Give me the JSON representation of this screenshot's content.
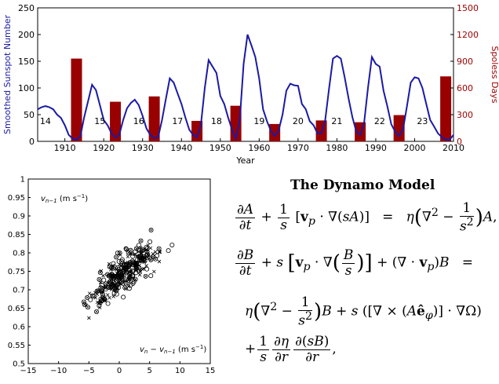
{
  "chart_data": [
    {
      "type": "line+bar",
      "title": "",
      "xlabel": "Year",
      "ylabel_left": "Smoothed Sunspot Number",
      "ylabel_right": "Spoless Days",
      "xlim": [
        1903,
        2010
      ],
      "ylim_left": [
        0,
        250
      ],
      "ylim_right": [
        0,
        1500
      ],
      "x_ticks": [
        "1910",
        "1920",
        "1930",
        "1940",
        "1950",
        "1960",
        "1970",
        "1980",
        "1990",
        "2000",
        "2010"
      ],
      "y_ticks_left": [
        "0",
        "50",
        "100",
        "150",
        "200",
        "250"
      ],
      "y_ticks_right": [
        "0",
        "300",
        "600",
        "900",
        "1200",
        "1500"
      ],
      "line_color": "#1a1aa6",
      "bar_color": "#990000",
      "sunspot_series": {
        "name": "Smoothed Sunspot Number",
        "x": [
          1903,
          1904,
          1905,
          1906,
          1907,
          1908,
          1909,
          1910,
          1911,
          1912,
          1913,
          1914,
          1915,
          1916,
          1917,
          1918,
          1919,
          1920,
          1921,
          1922,
          1923,
          1924,
          1925,
          1926,
          1927,
          1928,
          1929,
          1930,
          1931,
          1932,
          1933,
          1934,
          1935,
          1936,
          1937,
          1938,
          1939,
          1940,
          1941,
          1942,
          1943,
          1944,
          1945,
          1946,
          1947,
          1948,
          1949,
          1950,
          1951,
          1952,
          1953,
          1954,
          1955,
          1956,
          1957,
          1958,
          1959,
          1960,
          1961,
          1962,
          1963,
          1964,
          1965,
          1966,
          1967,
          1968,
          1969,
          1970,
          1971,
          1972,
          1973,
          1974,
          1975,
          1976,
          1977,
          1978,
          1979,
          1980,
          1981,
          1982,
          1983,
          1984,
          1985,
          1986,
          1987,
          1988,
          1989,
          1990,
          1991,
          1992,
          1993,
          1994,
          1995,
          1996,
          1997,
          1998,
          1999,
          2000,
          2001,
          2002,
          2003,
          2004,
          2005,
          2006,
          2007,
          2008,
          2009,
          2010
        ],
        "values": [
          60,
          64,
          66,
          64,
          60,
          50,
          44,
          30,
          12,
          5,
          3,
          10,
          46,
          76,
          106,
          96,
          68,
          40,
          30,
          15,
          7,
          12,
          40,
          62,
          72,
          78,
          68,
          48,
          24,
          12,
          6,
          8,
          40,
          80,
          118,
          110,
          90,
          70,
          45,
          22,
          12,
          8,
          30,
          100,
          152,
          140,
          128,
          85,
          70,
          45,
          22,
          5,
          40,
          145,
          200,
          180,
          158,
          118,
          60,
          38,
          20,
          10,
          20,
          50,
          95,
          108,
          105,
          104,
          70,
          60,
          38,
          30,
          15,
          15,
          40,
          100,
          155,
          160,
          155,
          120,
          80,
          45,
          18,
          12,
          35,
          100,
          158,
          145,
          140,
          95,
          65,
          32,
          18,
          10,
          22,
          65,
          110,
          120,
          118,
          100,
          70,
          40,
          28,
          15,
          8,
          3,
          3,
          12
        ]
      },
      "spotless_days": {
        "name": "Spoless Days",
        "x": [
          1913,
          1923,
          1933,
          1944,
          1954,
          1964,
          1976,
          1986,
          1996,
          2008
        ],
        "values": [
          930,
          445,
          505,
          230,
          400,
          195,
          235,
          215,
          295,
          730
        ]
      },
      "cycle_labels": [
        {
          "label": "14",
          "x": 1905
        },
        {
          "label": "15",
          "x": 1919
        },
        {
          "label": "16",
          "x": 1929
        },
        {
          "label": "17",
          "x": 1939
        },
        {
          "label": "18",
          "x": 1949
        },
        {
          "label": "19",
          "x": 1960
        },
        {
          "label": "20",
          "x": 1970
        },
        {
          "label": "21",
          "x": 1980
        },
        {
          "label": "22",
          "x": 1991
        },
        {
          "label": "23",
          "x": 2002
        }
      ]
    },
    {
      "type": "scatter",
      "title": "",
      "xlabel_inset": "v_n − v_{n−1} (m s⁻¹)",
      "ylabel_inset": "v_{n−1} (m s⁻¹)",
      "xlim": [
        -15,
        15
      ],
      "ylim": [
        0.5,
        1.0
      ],
      "x_ticks": [
        "−15",
        "−10",
        "−5",
        "0",
        "5",
        "10",
        "15"
      ],
      "y_ticks": [
        "0.5",
        "0.55",
        "0.6",
        "0.65",
        "0.7",
        "0.75",
        "0.8",
        "0.85",
        "0.9",
        "0.95",
        "1"
      ],
      "marker_types": [
        "o",
        "x",
        "⊗"
      ],
      "trend": {
        "slope": 0.0127,
        "intercept": 0.735
      }
    }
  ],
  "dynamo": {
    "title": "The Dynamo Model"
  }
}
